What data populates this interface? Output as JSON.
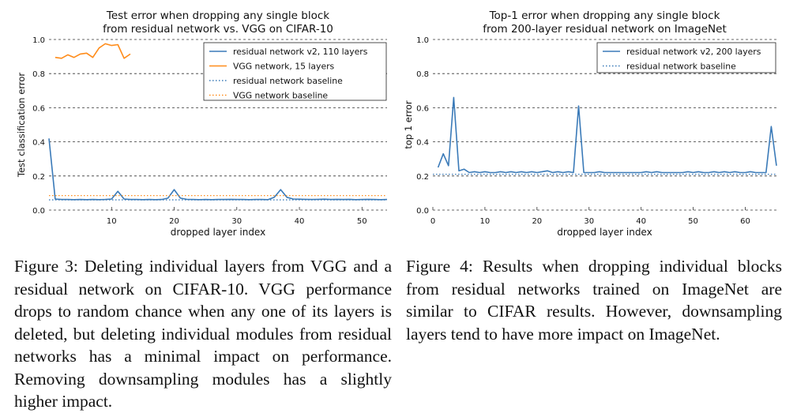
{
  "chart_data": [
    {
      "type": "line",
      "title": [
        "Test error when dropping any single block",
        "from residual network vs. VGG on CIFAR-10"
      ],
      "xlabel": "dropped layer index",
      "ylabel": "Test classification error",
      "xlim": [
        0,
        54
      ],
      "ylim": [
        0.0,
        1.0
      ],
      "xticks": [
        10,
        20,
        30,
        40,
        50
      ],
      "yticks": [
        0.0,
        0.2,
        0.4,
        0.6,
        0.8,
        1.0
      ],
      "ytick_labels": [
        "0.0",
        "0.2",
        "0.4",
        "0.6",
        "0.8",
        "1.0"
      ],
      "grid": "horizontal dashed",
      "legend_position": "top-right",
      "series": [
        {
          "name": "residual network v2, 110 layers",
          "color": "#3a7ab8",
          "style": "solid",
          "x": [
            0,
            1,
            2,
            3,
            4,
            5,
            6,
            7,
            8,
            9,
            10,
            11,
            12,
            13,
            14,
            15,
            16,
            17,
            18,
            19,
            20,
            21,
            22,
            23,
            24,
            25,
            26,
            27,
            28,
            29,
            30,
            31,
            32,
            33,
            34,
            35,
            36,
            37,
            38,
            39,
            40,
            41,
            42,
            43,
            44,
            45,
            46,
            47,
            48,
            49,
            50,
            51,
            52,
            53,
            54
          ],
          "values": [
            0.42,
            0.065,
            0.062,
            0.062,
            0.061,
            0.062,
            0.061,
            0.062,
            0.061,
            0.062,
            0.065,
            0.11,
            0.065,
            0.062,
            0.062,
            0.061,
            0.062,
            0.061,
            0.062,
            0.07,
            0.12,
            0.07,
            0.063,
            0.062,
            0.061,
            0.062,
            0.061,
            0.062,
            0.062,
            0.063,
            0.062,
            0.062,
            0.061,
            0.062,
            0.062,
            0.061,
            0.075,
            0.12,
            0.075,
            0.065,
            0.064,
            0.063,
            0.062,
            0.063,
            0.064,
            0.062,
            0.063,
            0.062,
            0.063,
            0.061,
            0.062,
            0.063,
            0.062,
            0.061,
            0.062
          ]
        },
        {
          "name": "VGG network, 15 layers",
          "color": "#ff8c1a",
          "style": "solid",
          "x": [
            1,
            2,
            3,
            4,
            5,
            6,
            7,
            8,
            9,
            10,
            11,
            12,
            13
          ],
          "values": [
            0.895,
            0.89,
            0.91,
            0.895,
            0.915,
            0.92,
            0.895,
            0.95,
            0.975,
            0.965,
            0.97,
            0.89,
            0.915
          ]
        },
        {
          "name": "residual network baseline",
          "color": "#3a7ab8",
          "style": "dotted",
          "y_const": 0.06
        },
        {
          "name": "VGG network baseline",
          "color": "#ff8c1a",
          "style": "dotted",
          "y_const": 0.085
        }
      ]
    },
    {
      "type": "line",
      "title": [
        "Top-1 error when dropping any single block",
        "from 200-layer residual network on ImageNet"
      ],
      "xlabel": "dropped layer index",
      "ylabel": "top 1 error",
      "xlim": [
        0,
        66
      ],
      "ylim": [
        0.0,
        1.0
      ],
      "xticks": [
        0,
        10,
        20,
        30,
        40,
        50,
        60
      ],
      "yticks": [
        0.0,
        0.2,
        0.4,
        0.6,
        0.8,
        1.0
      ],
      "ytick_labels": [
        "0.0",
        "0.2",
        "0.4",
        "0.6",
        "0.8",
        "1.0"
      ],
      "grid": "horizontal dashed",
      "legend_position": "top-right",
      "series": [
        {
          "name": "residual network v2, 200 layers",
          "color": "#3a7ab8",
          "style": "solid",
          "x": [
            1,
            2,
            3,
            4,
            5,
            6,
            7,
            8,
            9,
            10,
            11,
            12,
            13,
            14,
            15,
            16,
            17,
            18,
            19,
            20,
            21,
            22,
            23,
            24,
            25,
            26,
            27,
            28,
            29,
            30,
            31,
            32,
            33,
            34,
            35,
            36,
            37,
            38,
            39,
            40,
            41,
            42,
            43,
            44,
            45,
            46,
            47,
            48,
            49,
            50,
            51,
            52,
            53,
            54,
            55,
            56,
            57,
            58,
            59,
            60,
            61,
            62,
            63,
            64,
            65,
            66
          ],
          "values": [
            0.25,
            0.33,
            0.26,
            0.66,
            0.23,
            0.24,
            0.22,
            0.225,
            0.22,
            0.225,
            0.22,
            0.22,
            0.225,
            0.22,
            0.225,
            0.22,
            0.225,
            0.22,
            0.225,
            0.22,
            0.225,
            0.23,
            0.22,
            0.225,
            0.22,
            0.225,
            0.22,
            0.61,
            0.22,
            0.22,
            0.22,
            0.225,
            0.22,
            0.22,
            0.22,
            0.22,
            0.22,
            0.22,
            0.22,
            0.22,
            0.225,
            0.22,
            0.225,
            0.22,
            0.22,
            0.22,
            0.22,
            0.22,
            0.225,
            0.22,
            0.225,
            0.22,
            0.22,
            0.225,
            0.22,
            0.225,
            0.22,
            0.225,
            0.22,
            0.22,
            0.225,
            0.22,
            0.22,
            0.22,
            0.49,
            0.26
          ]
        },
        {
          "name": "residual network baseline",
          "color": "#3a7ab8",
          "style": "dotted",
          "y_const": 0.21
        }
      ]
    }
  ],
  "captions": {
    "fig3": "Figure 3: Deleting individual layers from VGG and a residual network on CIFAR-10. VGG performance drops to random chance when any one of its layers is deleted, but deleting individual modules from residual networks has a minimal impact on performance. Removing downsampling modules has a slightly higher impact.",
    "fig4": "Figure 4: Results when dropping individual blocks from residual networks trained on ImageNet are similar to CIFAR results. However, downsampling layers tend to have more impact on ImageNet."
  }
}
